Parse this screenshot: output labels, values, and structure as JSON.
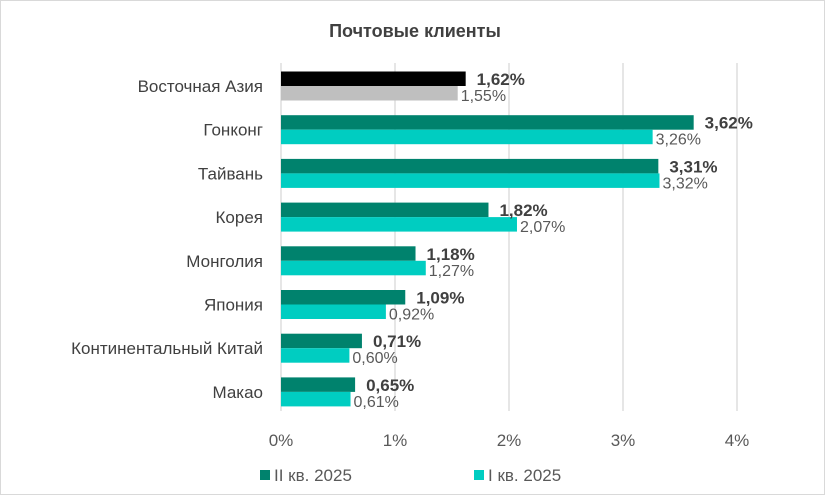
{
  "chart_data": {
    "type": "bar",
    "orientation": "horizontal",
    "title": "Почтовые клиенты",
    "categories": [
      "Восточная Азия",
      "Гонконг",
      "Тайвань",
      "Корея",
      "Монголия",
      "Япония",
      "Континентальный Китай",
      "Макао"
    ],
    "series": [
      {
        "name": "II кв. 2025",
        "color": "#00826d",
        "values": [
          1.62,
          3.62,
          3.31,
          1.82,
          1.18,
          1.09,
          0.71,
          0.65
        ],
        "labels": [
          "1,62%",
          "3,62%",
          "3,31%",
          "1,82%",
          "1,18%",
          "1,09%",
          "0,71%",
          "0,65%"
        ]
      },
      {
        "name": "I кв. 2025",
        "color": "#00cdc1",
        "values": [
          1.55,
          3.26,
          3.32,
          2.07,
          1.27,
          0.92,
          0.6,
          0.61
        ],
        "labels": [
          "1,55%",
          "3,26%",
          "3,32%",
          "2,07%",
          "1,27%",
          "0,92%",
          "0,60%",
          "0,61%"
        ]
      }
    ],
    "highlight": {
      "category": "Восточная Азия",
      "colors": [
        "#000000",
        "#bfbfbf"
      ]
    },
    "xlim": [
      0,
      4
    ],
    "xticks": [
      "0%",
      "1%",
      "2%",
      "3%",
      "4%"
    ],
    "grid": true,
    "legend": "bottom"
  }
}
